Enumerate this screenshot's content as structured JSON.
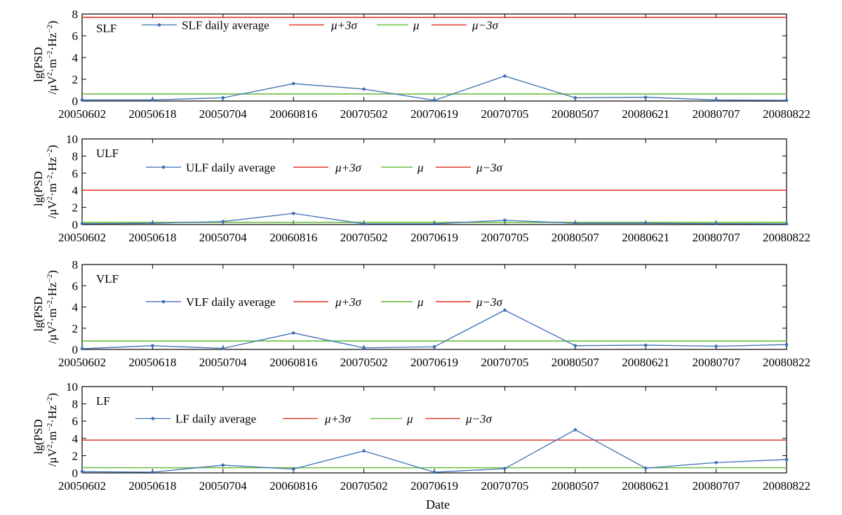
{
  "chart_data": {
    "type": "line",
    "xlabel": "Date",
    "x": [
      "20050602",
      "20050618",
      "20050704",
      "20060816",
      "20070502",
      "20070619",
      "20070705",
      "20080507",
      "20080621",
      "20080707",
      "20080822"
    ],
    "ylabel": {
      "line1": "lg(PSD",
      "line2_prefix": "/μV",
      "exp_2": "2",
      "middle": "·m",
      "exp_neg2a": "−2",
      "hz": "·Hz",
      "exp_neg2b": "−2",
      "close": ")"
    },
    "legend": {
      "mu_plus": "μ+3σ",
      "mu": "μ",
      "mu_minus": "μ−3σ"
    },
    "colors": {
      "series": "#3d6fb4",
      "threshold": "#e03a2f",
      "mean": "#6cbf3f"
    },
    "panels": [
      {
        "title": "SLF",
        "series_name": "SLF daily average",
        "ylim": [
          0,
          8
        ],
        "yticks": [
          "0",
          "2",
          "4",
          "6",
          "8"
        ],
        "values": [
          0.1,
          0.1,
          0.3,
          1.6,
          1.1,
          0.0,
          2.3,
          0.3,
          0.35,
          0.1,
          0.05
        ],
        "mu_plus_3sigma": 7.7,
        "mu": 0.65,
        "legend_y": 7.0,
        "legend_x": 85
      },
      {
        "title": "ULF",
        "series_name": "ULF daily average",
        "ylim": [
          0,
          10
        ],
        "yticks": [
          "0",
          "2",
          "4",
          "6",
          "8",
          "10"
        ],
        "values": [
          0.1,
          0.15,
          0.35,
          1.3,
          0.0,
          0.05,
          0.5,
          0.15,
          0.15,
          0.1,
          0.05
        ],
        "mu_plus_3sigma": 4.0,
        "mu": 0.25,
        "legend_y": 6.7,
        "legend_x": 91
      },
      {
        "title": "VLF",
        "series_name": "VLF daily average",
        "ylim": [
          0,
          8
        ],
        "yticks": [
          "0",
          "2",
          "4",
          "6",
          "8"
        ],
        "values": [
          0.0,
          0.35,
          0.1,
          1.55,
          0.15,
          0.25,
          3.7,
          0.35,
          0.4,
          0.3,
          0.45
        ],
        "mu_plus_3sigma": null,
        "mu": 0.8,
        "legend_y": 4.5,
        "legend_x": 91
      },
      {
        "title": "LF",
        "series_name": "LF daily average",
        "ylim": [
          0,
          10
        ],
        "yticks": [
          "0",
          "2",
          "4",
          "6",
          "8",
          "10"
        ],
        "values": [
          0.15,
          0.0,
          0.9,
          0.45,
          2.55,
          0.0,
          0.5,
          5.0,
          0.55,
          1.2,
          1.55
        ],
        "mu_plus_3sigma": 3.8,
        "mu": 0.6,
        "legend_y": 6.3,
        "legend_x": 76
      }
    ]
  }
}
